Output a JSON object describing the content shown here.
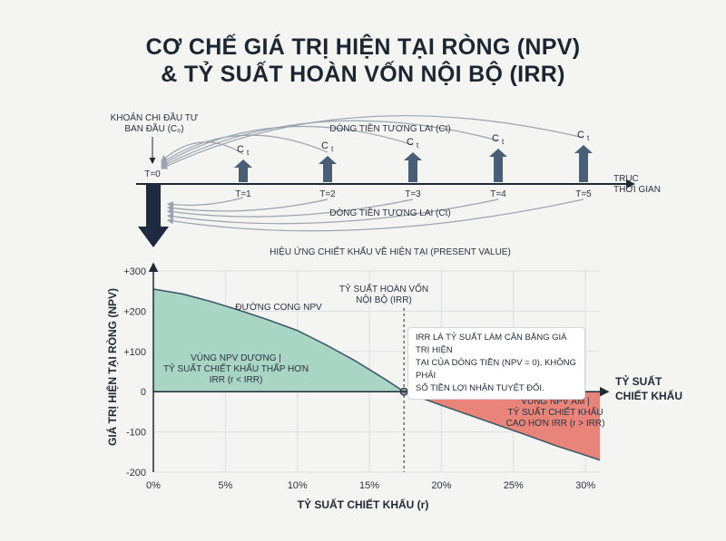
{
  "title_line1": "CƠ CHẾ GIÁ TRỊ HIỆN TẠI RÒNG (NPV)",
  "title_line2": "& TỶ SUẤT HOÀN VỐN NỘI BỘ (IRR)",
  "timeline": {
    "initial_label_line1": "KHOẢN CHI ĐẦU TƯ",
    "initial_label_line2": "BAN ĐẦU (C₀)",
    "t0_label": "T=0",
    "periods": [
      "T=1",
      "T=2",
      "T=3",
      "T=4",
      "T=5"
    ],
    "cash_flow_symbol": "C",
    "cash_flow_subscript": "t",
    "future_flows_top": "DÒNG TIỀN TƯƠNG LAI (Ct)",
    "future_flows_bottom": "DÒNG TIỀN TƯƠNG LAI (Ct)",
    "axis_label_line1": "TRỤC",
    "axis_label_line2": "THỜI GIAN",
    "discount_effect": "HIỆU ỨNG CHIẾT KHẤU VỀ HIỆN TẠI (PRESENT VALUE)"
  },
  "chart_data": {
    "type": "area",
    "ylabel": "GIÁ TRỊ HIỆN TẠI RÒNG (NPV)",
    "xlabel": "TỶ SUẤT CHIẾT KHẤU (r)",
    "x_axis_title_line1": "TỶ SUẤT",
    "x_axis_title_line2": "CHIẾT KHẤU",
    "xlim": [
      0,
      31
    ],
    "ylim": [
      -200,
      300
    ],
    "x_ticks": [
      0,
      5,
      10,
      15,
      20,
      25,
      30
    ],
    "x_tick_labels": [
      "0%",
      "5%",
      "10%",
      "15%",
      "20%",
      "25%",
      "30%"
    ],
    "y_ticks": [
      300,
      200,
      100,
      0,
      -100,
      -200
    ],
    "y_tick_labels": [
      "+300",
      "+200",
      "+100",
      "0",
      "-100",
      "-200"
    ],
    "grid": true,
    "series": [
      {
        "name": "ĐƯỜNG CONG NPV",
        "x": [
          0,
          2,
          4,
          6,
          8,
          10,
          12,
          14,
          16,
          17.4,
          20,
          22,
          24,
          26,
          28,
          30,
          31
        ],
        "y": [
          255,
          243,
          224,
          202,
          178,
          152,
          116,
          77,
          33,
          0,
          -34,
          -59,
          -84,
          -109,
          -135,
          -158,
          -170
        ]
      }
    ],
    "irr": 17.4,
    "irr_label_line1": "TỶ SUẤT HOÀN VỐN",
    "irr_label_line2": "NỘI BỘ (IRR)",
    "positive_region": {
      "label_line1": "VÙNG NPV DƯƠNG |",
      "label_line2": "TỶ SUẤT CHIẾT KHẤU THẤP HƠN",
      "label_line3": "IRR (r < IRR)",
      "color": "#a8d5c4"
    },
    "negative_region": {
      "label_line1": "VÙNG NPV ÂM |",
      "label_line2": "TỶ SUẤT CHIẾT KHẤU",
      "label_line3": "CAO HƠN IRR (r > IRR)",
      "color": "#e8847a"
    },
    "curve_color": "#3e5a68"
  },
  "callout": {
    "line1": "IRR LÀ TỶ SUẤT LÀM CÂN BẰNG GIÁ TRỊ HIỆN",
    "line2": "TẠI CỦA DÒNG TIỀN (NPV = 0), KHÔNG PHẢI",
    "line3": "SỐ TIỀN LỢI NHẬN TUYỆT ĐỐI."
  },
  "colors": {
    "arrow_fill": "#4a5e76",
    "arrow_dark": "#1e2a40",
    "axis": "#1f2933"
  }
}
